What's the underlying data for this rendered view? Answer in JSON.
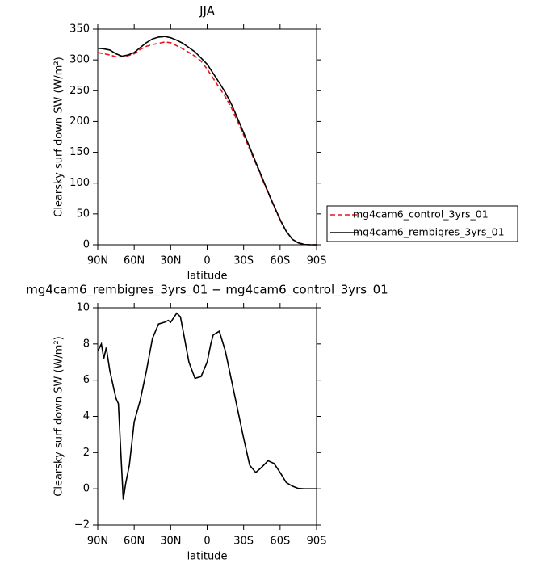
{
  "chart_data": [
    {
      "type": "line",
      "title": "JJA",
      "xlabel": "latitude",
      "ylabel": "Clearsky surf down SW (W/m²)",
      "xlim": [
        90,
        -90
      ],
      "ylim": [
        0,
        350
      ],
      "xticks": [
        {
          "value": 90,
          "label": "90N"
        },
        {
          "value": 60,
          "label": "60N"
        },
        {
          "value": 30,
          "label": "30N"
        },
        0,
        {
          "value": -30,
          "label": "30S"
        },
        {
          "value": -60,
          "label": "60S"
        },
        {
          "value": -90,
          "label": "90S"
        }
      ],
      "yticks": [
        0,
        50,
        100,
        150,
        200,
        250,
        300,
        350
      ],
      "legend": "right",
      "x": [
        90,
        85,
        80,
        75,
        70,
        65,
        60,
        55,
        50,
        45,
        40,
        35,
        30,
        25,
        20,
        15,
        10,
        5,
        0,
        -5,
        -10,
        -15,
        -20,
        -25,
        -30,
        -35,
        -40,
        -45,
        -50,
        -55,
        -60,
        -65,
        -70,
        -75,
        -80,
        -85,
        -90
      ],
      "series": [
        {
          "name": "mg4cam6_control_3yrs_01",
          "color": "#e8141c",
          "dash": true,
          "values": [
            312,
            310,
            308,
            305,
            305,
            307,
            310,
            317,
            322,
            325,
            327,
            329,
            328,
            323,
            318,
            312,
            306,
            298,
            285,
            270,
            255,
            240,
            222,
            200,
            178,
            155,
            132,
            108,
            85,
            62,
            40,
            22,
            9,
            3,
            0.5,
            0,
            0
          ]
        },
        {
          "name": "mg4cam6_rembigres_3yrs_01",
          "color": "#000000",
          "dash": false,
          "values": [
            319,
            318,
            316,
            310,
            306,
            308,
            312,
            320,
            328,
            334,
            337,
            338,
            336,
            332,
            327,
            320,
            313,
            303,
            293,
            278,
            263,
            247,
            228,
            205,
            182,
            158,
            134,
            110,
            86,
            63,
            41,
            22,
            9,
            3,
            0.5,
            0,
            0
          ]
        }
      ]
    },
    {
      "type": "line",
      "title": "mg4cam6_rembigres_3yrs_01 − mg4cam6_control_3yrs_01",
      "xlabel": "latitude",
      "ylabel": "Clearsky surf down SW (W/m²)",
      "xlim": [
        90,
        -90
      ],
      "ylim": [
        -2,
        10
      ],
      "xticks": [
        {
          "value": 90,
          "label": "90N"
        },
        {
          "value": 60,
          "label": "60N"
        },
        {
          "value": 30,
          "label": "30N"
        },
        0,
        {
          "value": -30,
          "label": "30S"
        },
        {
          "value": -60,
          "label": "60S"
        },
        {
          "value": -90,
          "label": "90S"
        }
      ],
      "yticks": [
        {
          "value": -2,
          "label": "−2"
        },
        0,
        2,
        4,
        6,
        8,
        10
      ],
      "x": [
        90,
        87,
        85,
        83,
        80,
        75,
        73,
        71,
        69,
        67,
        64,
        60,
        55,
        50,
        45,
        40,
        35,
        32,
        30,
        27,
        25,
        22,
        20,
        15,
        10,
        5,
        0,
        -3,
        -5,
        -10,
        -15,
        -20,
        -25,
        -30,
        -35,
        -40,
        -45,
        -50,
        -55,
        -60,
        -65,
        -70,
        -75,
        -80,
        -85,
        -90
      ],
      "series": [
        {
          "color": "#000000",
          "dash": false,
          "values": [
            7.6,
            8.0,
            7.2,
            7.8,
            6.5,
            5.0,
            4.7,
            2.0,
            -0.6,
            0.3,
            1.3,
            3.7,
            4.9,
            6.5,
            8.3,
            9.1,
            9.2,
            9.3,
            9.2,
            9.5,
            9.7,
            9.5,
            8.8,
            7.0,
            6.1,
            6.2,
            7.0,
            8.0,
            8.5,
            8.7,
            7.6,
            6.0,
            4.4,
            2.8,
            1.3,
            0.9,
            1.2,
            1.55,
            1.4,
            0.9,
            0.35,
            0.15,
            0.02,
            0,
            0,
            0
          ]
        }
      ]
    }
  ]
}
